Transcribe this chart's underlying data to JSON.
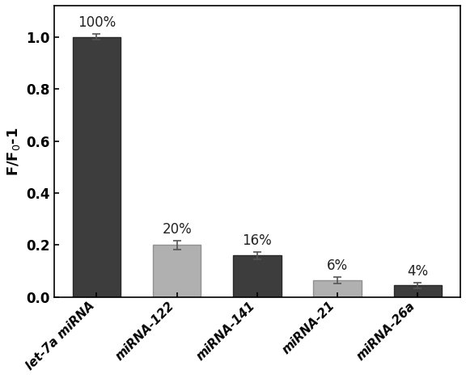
{
  "categories": [
    "let-7a miRNA",
    "miRNA-122",
    "miRNA-141",
    "miRNA-21",
    "miRNA-26a"
  ],
  "values": [
    1.0,
    0.2,
    0.16,
    0.065,
    0.045
  ],
  "errors": [
    0.012,
    0.018,
    0.015,
    0.012,
    0.01
  ],
  "bar_colors": [
    "#3d3d3d",
    "#b0b0b0",
    "#3d3d3d",
    "#b0b0b0",
    "#3d3d3d"
  ],
  "edge_colors": [
    "#2a2a2a",
    "#909090",
    "#2a2a2a",
    "#909090",
    "#2a2a2a"
  ],
  "labels": [
    "100%",
    "20%",
    "16%",
    "6%",
    "4%"
  ],
  "ylabel": "F/F$_0$-1",
  "ylim": [
    0,
    1.12
  ],
  "yticks": [
    0.0,
    0.2,
    0.4,
    0.6,
    0.8,
    1.0
  ],
  "background_color": "#ffffff",
  "bar_width": 0.6,
  "label_fontsize": 12,
  "tick_fontsize": 12,
  "ylabel_fontsize": 13,
  "xtick_fontsize": 11
}
